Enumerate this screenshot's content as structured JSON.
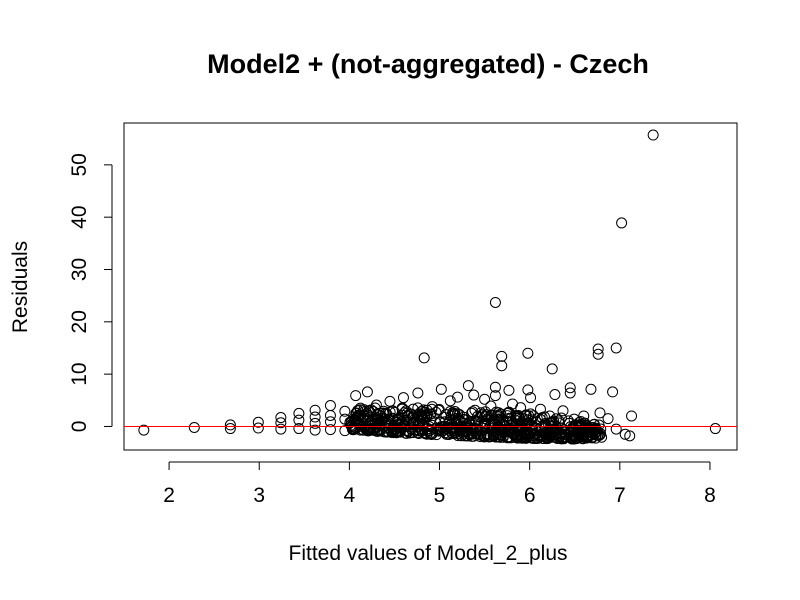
{
  "chart_data": {
    "type": "scatter",
    "title": "Model2 + (not-aggregated) - Czech",
    "xlabel": "Fitted values of Model_2_plus",
    "ylabel": "Residuals",
    "xlim": [
      1.5,
      8.3
    ],
    "ylim": [
      -4.5,
      58
    ],
    "xticks": [
      "2",
      "3",
      "4",
      "5",
      "6",
      "7",
      "8"
    ],
    "yticks": [
      "0",
      "10",
      "20",
      "30",
      "40",
      "50"
    ],
    "reference_line": {
      "y": 0,
      "color": "#ff0000"
    },
    "point_color": "#000000",
    "grid": false,
    "legend": "none",
    "points": [
      [
        1.72,
        -0.7
      ],
      [
        2.28,
        -0.2
      ],
      [
        2.68,
        0.3
      ],
      [
        2.68,
        -0.4
      ],
      [
        2.99,
        0.8
      ],
      [
        2.99,
        -0.3
      ],
      [
        3.24,
        1.7
      ],
      [
        3.24,
        0.7
      ],
      [
        3.24,
        -0.5
      ],
      [
        3.44,
        2.5
      ],
      [
        3.44,
        1.2
      ],
      [
        3.44,
        -0.4
      ],
      [
        3.62,
        3.1
      ],
      [
        3.62,
        1.8
      ],
      [
        3.62,
        0.6
      ],
      [
        3.62,
        -0.7
      ],
      [
        3.79,
        4.0
      ],
      [
        3.79,
        2.1
      ],
      [
        3.79,
        0.9
      ],
      [
        3.79,
        -0.6
      ],
      [
        3.95,
        2.9
      ],
      [
        3.95,
        1.4
      ],
      [
        3.95,
        -0.8
      ],
      [
        4.07,
        5.9
      ],
      [
        4.2,
        6.6
      ],
      [
        4.12,
        3.2
      ],
      [
        4.3,
        4.1
      ],
      [
        4.45,
        4.8
      ],
      [
        4.6,
        5.5
      ],
      [
        4.76,
        6.4
      ],
      [
        4.83,
        13.1
      ],
      [
        4.92,
        3.8
      ],
      [
        5.02,
        7.1
      ],
      [
        5.12,
        4.9
      ],
      [
        5.2,
        5.6
      ],
      [
        5.32,
        7.8
      ],
      [
        5.38,
        6.0
      ],
      [
        5.5,
        5.2
      ],
      [
        5.57,
        3.9
      ],
      [
        5.62,
        23.7
      ],
      [
        5.62,
        7.5
      ],
      [
        5.62,
        5.9
      ],
      [
        5.69,
        13.4
      ],
      [
        5.69,
        11.6
      ],
      [
        5.77,
        6.9
      ],
      [
        5.81,
        4.3
      ],
      [
        5.9,
        3.6
      ],
      [
        5.98,
        14.0
      ],
      [
        5.98,
        7.0
      ],
      [
        6.01,
        5.5
      ],
      [
        6.12,
        3.3
      ],
      [
        6.25,
        11.0
      ],
      [
        6.28,
        6.1
      ],
      [
        6.37,
        3.0
      ],
      [
        6.45,
        7.4
      ],
      [
        6.45,
        6.4
      ],
      [
        6.6,
        2.0
      ],
      [
        6.68,
        7.1
      ],
      [
        6.76,
        13.8
      ],
      [
        6.76,
        14.8
      ],
      [
        6.78,
        2.6
      ],
      [
        6.87,
        1.5
      ],
      [
        6.92,
        6.6
      ],
      [
        6.96,
        15.0
      ],
      [
        6.96,
        -0.5
      ],
      [
        7.02,
        38.9
      ],
      [
        7.06,
        -1.5
      ],
      [
        7.11,
        -1.8
      ],
      [
        7.13,
        2.0
      ],
      [
        7.37,
        55.7
      ],
      [
        8.06,
        -0.4
      ]
    ],
    "dense_band": {
      "x_range": [
        4.0,
        6.8
      ],
      "upper_envelope": [
        [
          4.0,
          3.5
        ],
        [
          4.5,
          3.8
        ],
        [
          5.0,
          3.4
        ],
        [
          5.5,
          3.1
        ],
        [
          6.0,
          2.5
        ],
        [
          6.5,
          1.4
        ],
        [
          6.8,
          0.3
        ]
      ],
      "lower_envelope": [
        [
          4.0,
          -0.6
        ],
        [
          4.5,
          -1.2
        ],
        [
          5.0,
          -1.6
        ],
        [
          5.5,
          -2.0
        ],
        [
          6.0,
          -2.3
        ],
        [
          6.5,
          -2.4
        ],
        [
          6.8,
          -2.2
        ]
      ]
    }
  }
}
